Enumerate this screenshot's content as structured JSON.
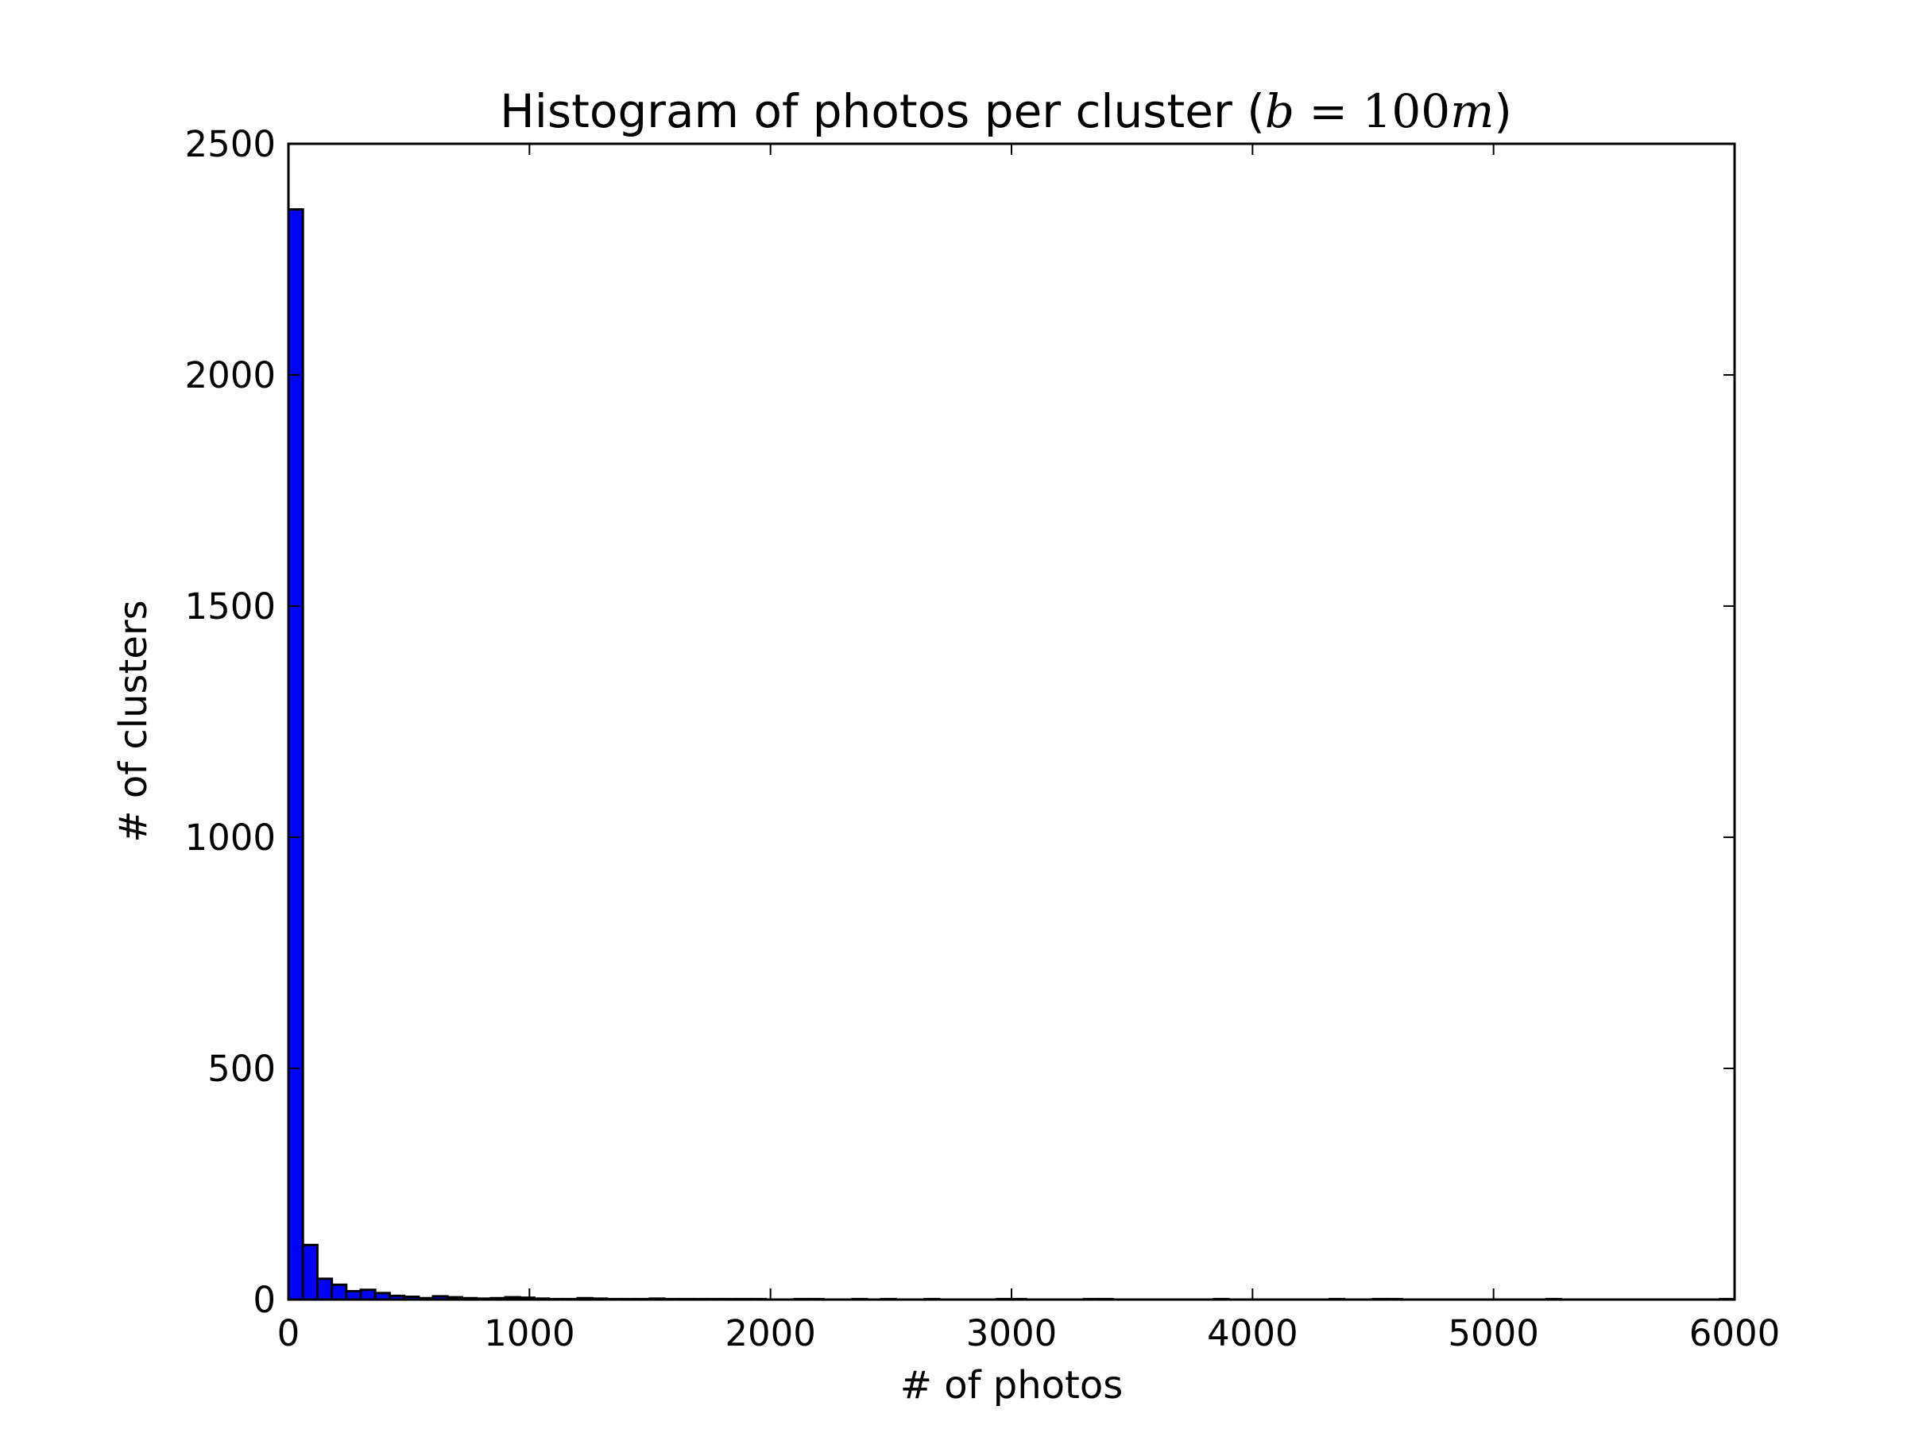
{
  "chart_data": {
    "type": "bar",
    "title": {
      "text": "Histogram of photos per cluster (",
      "math_b": "b",
      "math_eq": " = 100",
      "math_m": "m",
      "close": ")"
    },
    "xlabel": "# of photos",
    "ylabel": "# of clusters",
    "xlim": [
      0,
      6000
    ],
    "ylim": [
      0,
      2500
    ],
    "xticks": [
      "0",
      "1000",
      "2000",
      "3000",
      "4000",
      "5000",
      "6000"
    ],
    "yticks": [
      "0",
      "500",
      "1000",
      "1500",
      "2000",
      "2500"
    ],
    "grid": false,
    "bar_color": "#0000ff",
    "edge_color": "#000000",
    "bin_width": 60,
    "bins_start": [
      0,
      60,
      120,
      180,
      240,
      300,
      360,
      420,
      480,
      540,
      600,
      660,
      720,
      780,
      840,
      900,
      960,
      1020,
      1080,
      1140,
      1200,
      1260,
      1320,
      1380,
      1440,
      1500,
      1560,
      1620,
      1680,
      1740,
      1800,
      1860,
      1920,
      1980,
      2040,
      2100,
      2160,
      2220,
      2280,
      2340,
      2400,
      2460,
      2520,
      2580,
      2640,
      2700,
      2760,
      2820,
      2880,
      2940,
      3000,
      3060,
      3120,
      3180,
      3240,
      3300,
      3360,
      3420,
      3480,
      3540,
      3600,
      3660,
      3720,
      3780,
      3840,
      3900,
      3960,
      4020,
      4080,
      4140,
      4200,
      4260,
      4320,
      4380,
      4440,
      4500,
      4560,
      4620,
      4680,
      4740,
      4800,
      4860,
      4920,
      4980,
      5040,
      5100,
      5160,
      5220,
      5280,
      5340,
      5400,
      5460,
      5520,
      5580,
      5640,
      5700,
      5760,
      5820,
      5880,
      5940
    ],
    "counts": [
      2358,
      118,
      45,
      32,
      18,
      21,
      14,
      8,
      6,
      3,
      7,
      5,
      3,
      2,
      3,
      5,
      4,
      2,
      1,
      1,
      3,
      2,
      1,
      1,
      1,
      2,
      1,
      1,
      1,
      1,
      1,
      1,
      1,
      0,
      0,
      1,
      1,
      0,
      0,
      1,
      0,
      1,
      0,
      0,
      1,
      0,
      0,
      0,
      0,
      1,
      1,
      0,
      0,
      0,
      0,
      1,
      1,
      0,
      0,
      0,
      0,
      0,
      0,
      0,
      1,
      0,
      0,
      0,
      0,
      0,
      0,
      0,
      1,
      0,
      0,
      1,
      1,
      0,
      0,
      0,
      0,
      0,
      0,
      0,
      0,
      0,
      0,
      1,
      0,
      0,
      0,
      0,
      0,
      0,
      0,
      0,
      0,
      0,
      0,
      1
    ]
  }
}
